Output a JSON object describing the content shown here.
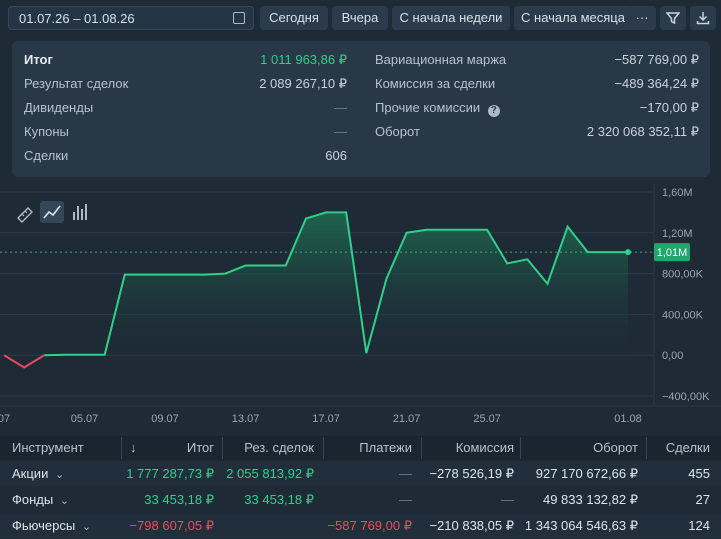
{
  "toolbar": {
    "date_range": "01.07.26 – 01.08.26",
    "buttons": [
      "Сегодня",
      "Вчера",
      "С начала недели",
      "С начала месяца"
    ],
    "more": "···"
  },
  "summary": {
    "left": [
      {
        "label": "Итог",
        "value": "1 011 963,86 ₽"
      },
      {
        "label": "Результат сделок",
        "value": "2 089 267,10 ₽"
      },
      {
        "label": "Дивиденды",
        "value": "—"
      },
      {
        "label": "Купоны",
        "value": "—"
      },
      {
        "label": "Сделки",
        "value": "606"
      }
    ],
    "right": [
      {
        "label": "Вариационная маржа",
        "value": "−587 769,00 ₽"
      },
      {
        "label": "Комиссия за сделки",
        "value": "−489 364,24 ₽"
      },
      {
        "label": "Прочие комиссии",
        "value": "−170,00 ₽"
      },
      {
        "label": "Оборот",
        "value": "2 320 068 352,11 ₽"
      }
    ]
  },
  "chart_data": {
    "type": "line",
    "x": [
      "01.07",
      "02.07",
      "03.07",
      "04.07",
      "05.07",
      "06.07",
      "07.07",
      "08.07",
      "09.07",
      "10.07",
      "11.07",
      "12.07",
      "13.07",
      "14.07",
      "15.07",
      "16.07",
      "17.07",
      "18.07",
      "19.07",
      "20.07",
      "21.07",
      "22.07",
      "23.07",
      "24.07",
      "25.07",
      "26.07",
      "27.07",
      "28.07",
      "29.07",
      "30.07",
      "31.07",
      "01.08"
    ],
    "series": [
      {
        "values": [
          0,
          -120000,
          0,
          5000,
          5000,
          5000,
          790000,
          790000,
          790000,
          790000,
          790000,
          800000,
          880000,
          880000,
          880000,
          1340000,
          1400000,
          1400000,
          20000,
          750000,
          1200000,
          1230000,
          1230000,
          1230000,
          1230000,
          900000,
          940000,
          700000,
          1260000,
          1010000,
          1010000,
          1010000
        ]
      }
    ],
    "current_label": "1,01M",
    "y_ticks": [
      "1,60M",
      "1,20M",
      "800,00K",
      "400,00K",
      "0,00",
      "−400,00K"
    ],
    "x_ticks": [
      "07",
      "05.07",
      "09.07",
      "13.07",
      "17.07",
      "21.07",
      "25.07",
      "01.08"
    ],
    "ylim": [
      -400000,
      1600000
    ],
    "colors": {
      "positive": "#2fd08a",
      "negative": "#f04a5a",
      "area": "#1d5a44"
    }
  },
  "table": {
    "headers": [
      "Инструмент",
      "↓",
      "Итог",
      "Рез. сделок",
      "Платежи",
      "Комиссия",
      "Оборот",
      "Сделки"
    ],
    "rows": [
      {
        "name": "Акции",
        "total": "1 777 287,73 ₽",
        "result": "2 055 813,92 ₽",
        "payments": "—",
        "commission": "−278 526,19 ₽",
        "turnover": "927 170 672,66 ₽",
        "deals": "455"
      },
      {
        "name": "Фонды",
        "total": "33 453,18 ₽",
        "result": "33 453,18 ₽",
        "payments": "—",
        "commission": "—",
        "turnover": "49 833 132,82 ₽",
        "deals": "27"
      },
      {
        "name": "Фьючерсы",
        "total": "−798 607,05 ₽",
        "result": "",
        "payments": "−587 769,00 ₽",
        "commission": "−210 838,05 ₽",
        "turnover": "1 343 064 546,63 ₽",
        "deals": "124"
      }
    ]
  }
}
